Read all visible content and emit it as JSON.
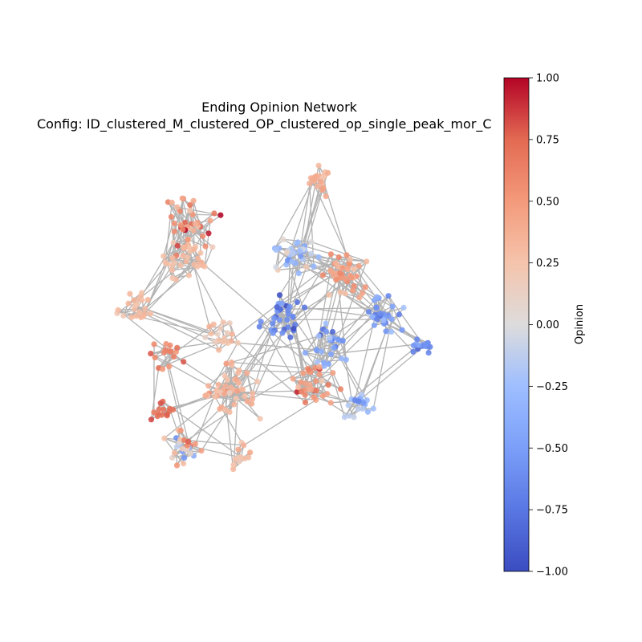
{
  "title": {
    "line1": "Ending Opinion Network",
    "line2": "Config: ID_clustered_M_clustered_OP_clustered_op_single_peak_mor_C"
  },
  "colorbar": {
    "label": "Opinion",
    "min": -1.0,
    "max": 1.0,
    "colormap": "coolwarm",
    "ticks": [
      "1.00",
      "0.75",
      "0.50",
      "0.25",
      "0.00",
      "−0.25",
      "−0.50",
      "−0.75",
      "−1.00"
    ],
    "tick_values": [
      1.0,
      0.75,
      0.5,
      0.25,
      0.0,
      -0.25,
      -0.5,
      -0.75,
      -1.0
    ],
    "colors": {
      "neg1": "#3b4cc0",
      "neg05": "#8db0fe",
      "zero": "#dddddd",
      "pos05": "#f4987a",
      "pos1": "#b40426"
    }
  },
  "network": {
    "edge_color": "#b3b3b3",
    "node_count_approx": 500
  }
}
